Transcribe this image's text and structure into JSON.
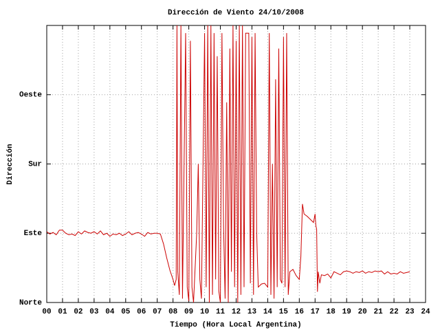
{
  "chart_data": {
    "type": "line",
    "title": "Dirección de Viento 24/10/2008",
    "x_label": "Tiempo (Hora Local Argentina)",
    "y_label": "Dirección",
    "color": "#cc0000",
    "grid": true,
    "xlim": [
      0,
      24
    ],
    "ylim": [
      0,
      360
    ],
    "xticks": [
      {
        "value": 0,
        "label": "00"
      },
      {
        "value": 1,
        "label": "01"
      },
      {
        "value": 2,
        "label": "02"
      },
      {
        "value": 3,
        "label": "03"
      },
      {
        "value": 4,
        "label": "04"
      },
      {
        "value": 5,
        "label": "05"
      },
      {
        "value": 6,
        "label": "06"
      },
      {
        "value": 7,
        "label": "07"
      },
      {
        "value": 8,
        "label": "08"
      },
      {
        "value": 9,
        "label": "09"
      },
      10,
      11,
      12,
      13,
      14,
      15,
      16,
      17,
      18,
      19,
      20,
      21,
      22,
      23,
      24
    ],
    "yticks": [
      {
        "value": 0,
        "label": "Norte"
      },
      {
        "value": 90,
        "label": "Este"
      },
      {
        "value": 180,
        "label": "Sur"
      },
      {
        "value": 270,
        "label": "Oeste"
      }
    ],
    "x": [
      0.0,
      0.2,
      0.4,
      0.6,
      0.8,
      1.0,
      1.2,
      1.4,
      1.6,
      1.8,
      2.0,
      2.2,
      2.4,
      2.6,
      2.8,
      3.0,
      3.2,
      3.4,
      3.6,
      3.8,
      4.0,
      4.2,
      4.4,
      4.6,
      4.8,
      5.0,
      5.2,
      5.4,
      5.6,
      5.8,
      6.0,
      6.2,
      6.4,
      6.6,
      6.8,
      7.0,
      7.2,
      7.4,
      7.6,
      7.8,
      8.0,
      8.1,
      8.2,
      8.25,
      8.3,
      8.4,
      8.5,
      8.6,
      8.7,
      8.8,
      8.9,
      9.0,
      9.1,
      9.2,
      9.3,
      9.5,
      9.6,
      9.7,
      9.8,
      10.0,
      10.1,
      10.2,
      10.3,
      10.4,
      10.5,
      10.6,
      10.7,
      10.8,
      10.9,
      11.0,
      11.1,
      11.2,
      11.3,
      11.4,
      11.5,
      11.6,
      11.7,
      11.8,
      11.9,
      12.0,
      12.1,
      12.2,
      12.3,
      12.4,
      12.5,
      12.6,
      12.8,
      12.9,
      13.0,
      13.1,
      13.2,
      13.3,
      13.4,
      13.6,
      13.8,
      14.0,
      14.1,
      14.2,
      14.3,
      14.4,
      14.5,
      14.6,
      14.7,
      14.8,
      14.9,
      15.0,
      15.1,
      15.2,
      15.3,
      15.4,
      15.6,
      15.8,
      16.0,
      16.1,
      16.2,
      16.3,
      16.5,
      16.7,
      16.9,
      17.0,
      17.05,
      17.1,
      17.15,
      17.2,
      17.3,
      17.4,
      17.6,
      17.8,
      18.0,
      18.2,
      18.4,
      18.6,
      18.8,
      19.0,
      19.2,
      19.4,
      19.6,
      19.8,
      20.0,
      20.2,
      20.4,
      20.6,
      20.8,
      21.0,
      21.2,
      21.4,
      21.6,
      21.8,
      22.0,
      22.2,
      22.4,
      22.6,
      22.8,
      23.0
    ],
    "values": [
      92,
      89,
      91,
      88,
      94,
      94,
      90,
      88,
      89,
      87,
      92,
      89,
      93,
      91,
      90,
      92,
      89,
      93,
      88,
      90,
      86,
      89,
      88,
      90,
      87,
      89,
      92,
      88,
      90,
      91,
      89,
      86,
      91,
      89,
      90,
      90,
      89,
      76,
      58,
      42,
      30,
      22,
      30,
      360,
      40,
      10,
      360,
      5,
      180,
      350,
      20,
      2,
      340,
      20,
      0,
      90,
      180,
      30,
      5,
      350,
      20,
      360,
      0,
      360,
      10,
      350,
      30,
      320,
      15,
      0,
      350,
      100,
      5,
      260,
      0,
      330,
      40,
      360,
      20,
      340,
      0,
      360,
      10,
      360,
      20,
      350,
      350,
      25,
      345,
      10,
      350,
      90,
      20,
      24,
      25,
      20,
      350,
      10,
      180,
      5,
      290,
      20,
      330,
      30,
      25,
      345,
      20,
      350,
      10,
      40,
      43,
      35,
      30,
      60,
      128,
      115,
      112,
      108,
      104,
      115,
      100,
      95,
      14,
      40,
      25,
      36,
      35,
      37,
      32,
      40,
      38,
      36,
      40,
      41,
      40,
      38,
      40,
      39,
      41,
      38,
      40,
      39,
      41,
      40,
      41,
      37,
      40,
      37,
      38,
      37,
      40,
      38,
      39,
      40
    ]
  }
}
